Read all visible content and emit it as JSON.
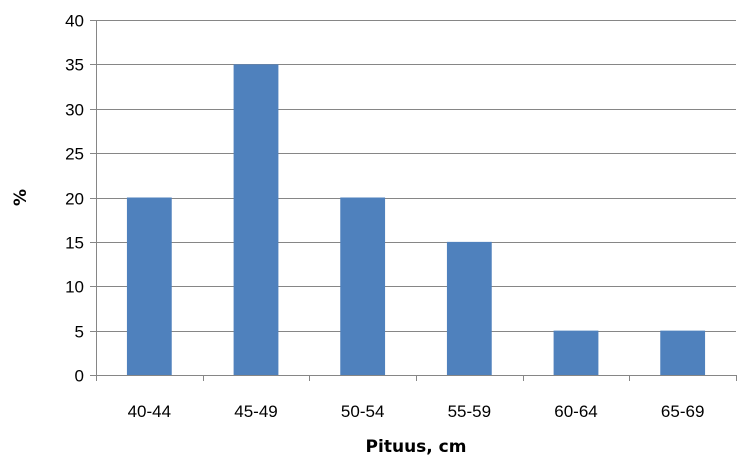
{
  "chart_data": {
    "type": "bar",
    "title": "",
    "xlabel": "Pituus, cm",
    "ylabel": "%",
    "categories": [
      "40-44",
      "45-49",
      "50-54",
      "55-59",
      "60-64",
      "65-69"
    ],
    "values": [
      20,
      35,
      20,
      15,
      5,
      5
    ],
    "ylim": [
      0,
      40
    ],
    "yticks": [
      "0",
      "5",
      "10",
      "15",
      "20",
      "25",
      "30",
      "35",
      "40"
    ],
    "grid": true,
    "legend": "none",
    "bar_color": "#4F81BD"
  }
}
